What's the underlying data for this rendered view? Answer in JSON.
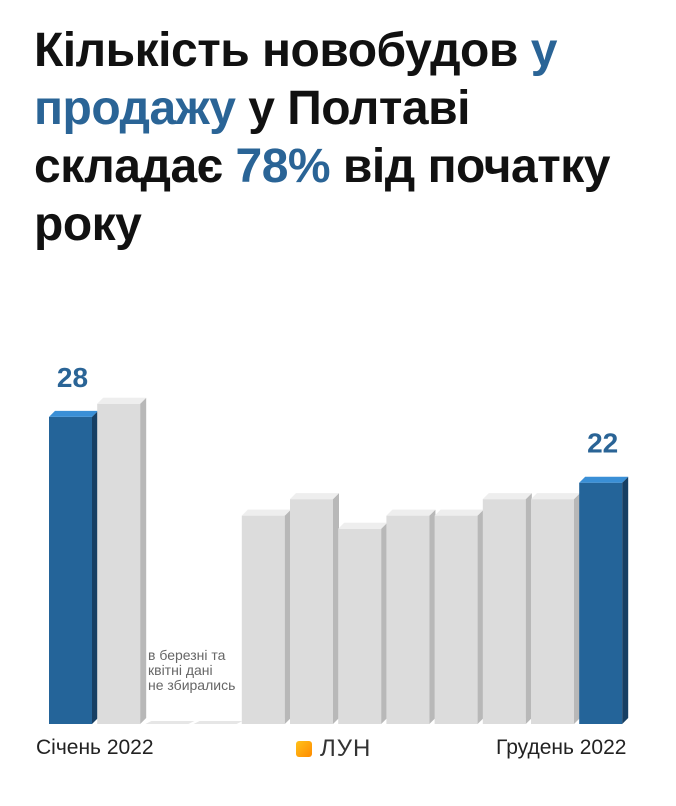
{
  "title": {
    "part1": "Кількість новобудов ",
    "highlight1": "у продажу",
    "part2": " у Полтаві складає ",
    "highlight2": "78%",
    "part3": " від початку року"
  },
  "chart_data": {
    "type": "bar",
    "categories": [
      "Січень 2022",
      "",
      "",
      "",
      "",
      "",
      "",
      "",
      "",
      "",
      "",
      "Грудень 2022"
    ],
    "values": [
      28,
      29.2,
      null,
      null,
      19,
      20.5,
      17.8,
      19,
      19,
      20.5,
      20.5,
      22
    ],
    "highlighted": [
      0,
      11
    ],
    "data_labels": [
      "28",
      "",
      "",
      "",
      "",
      "",
      "",
      "",
      "",
      "",
      "",
      "22"
    ],
    "ylim": [
      0,
      31
    ],
    "note": [
      "в березні та",
      "квітні дані",
      "не збирались"
    ]
  },
  "axis": {
    "start_label": "Січень 2022",
    "end_label": "Грудень 2022"
  },
  "logo": {
    "text": "ЛУН",
    "icon": "lun-logo-icon"
  },
  "colors": {
    "accent": "#2a6496",
    "highlight_front": "#246499",
    "highlight_side": "#173f63",
    "highlight_top": "#3a8fd6",
    "bar_front": "#dcdcdc",
    "bar_side": "#b8b8b8",
    "bar_top": "#eeeeee"
  }
}
